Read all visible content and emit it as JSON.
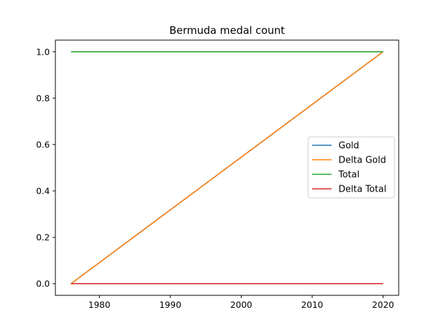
{
  "chart_data": {
    "type": "line",
    "title": "Bermuda medal count",
    "xlabel": "",
    "ylabel": "",
    "x": [
      1976,
      2020
    ],
    "xlim": [
      1973.8,
      2022.2
    ],
    "ylim": [
      -0.05,
      1.05
    ],
    "xticks": [
      1980,
      1990,
      2000,
      2010,
      2020
    ],
    "yticks": [
      0.0,
      0.2,
      0.4,
      0.6,
      0.8,
      1.0
    ],
    "xtick_labels": [
      "1980",
      "1990",
      "2000",
      "2010",
      "2020"
    ],
    "ytick_labels": [
      "0.0",
      "0.2",
      "0.4",
      "0.6",
      "0.8",
      "1.0"
    ],
    "grid": false,
    "legend_position": "center-right",
    "series": [
      {
        "name": "Gold",
        "values": [
          0,
          1
        ],
        "color": "#1f77b4"
      },
      {
        "name": "Delta Gold",
        "values": [
          0,
          1
        ],
        "color": "#ff7f0e"
      },
      {
        "name": "Total",
        "values": [
          1,
          1
        ],
        "color": "#2ca02c"
      },
      {
        "name": "Delta Total",
        "values": [
          0,
          0
        ],
        "color": "#d62728"
      }
    ]
  }
}
